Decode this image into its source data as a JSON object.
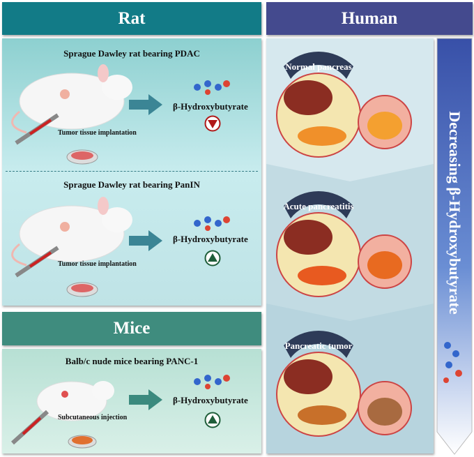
{
  "rat": {
    "title": "Rat",
    "pdac": {
      "title": "Sprague Dawley rat bearing PDAC",
      "metabolite": "β-Hydroxybutyrate",
      "procedure": "Tumor tissue implantation",
      "trend": "down"
    },
    "panin": {
      "title": "Sprague Dawley rat bearing PanIN",
      "metabolite": "β-Hydroxybutyrate",
      "procedure": "Tumor tissue implantation",
      "trend": "up"
    }
  },
  "mice": {
    "title": "Mice",
    "panc1": {
      "title": "Balb/c nude mice bearing PANC-1",
      "metabolite": "β-Hydroxybutyrate",
      "procedure": "Subcutaneous injection",
      "trend": "up"
    }
  },
  "human": {
    "title": "Human",
    "stages": [
      "Normal pancreas",
      "Acute pancreatitis",
      "Pancreatic tumor"
    ]
  },
  "arrow_label": "Decreasing β-Hydroxybutyrate",
  "colors": {
    "rat": "#127b87",
    "human": "#444a8e",
    "mice": "#3f8c7e",
    "down": "#b01818",
    "up": "#1f5e3a"
  }
}
